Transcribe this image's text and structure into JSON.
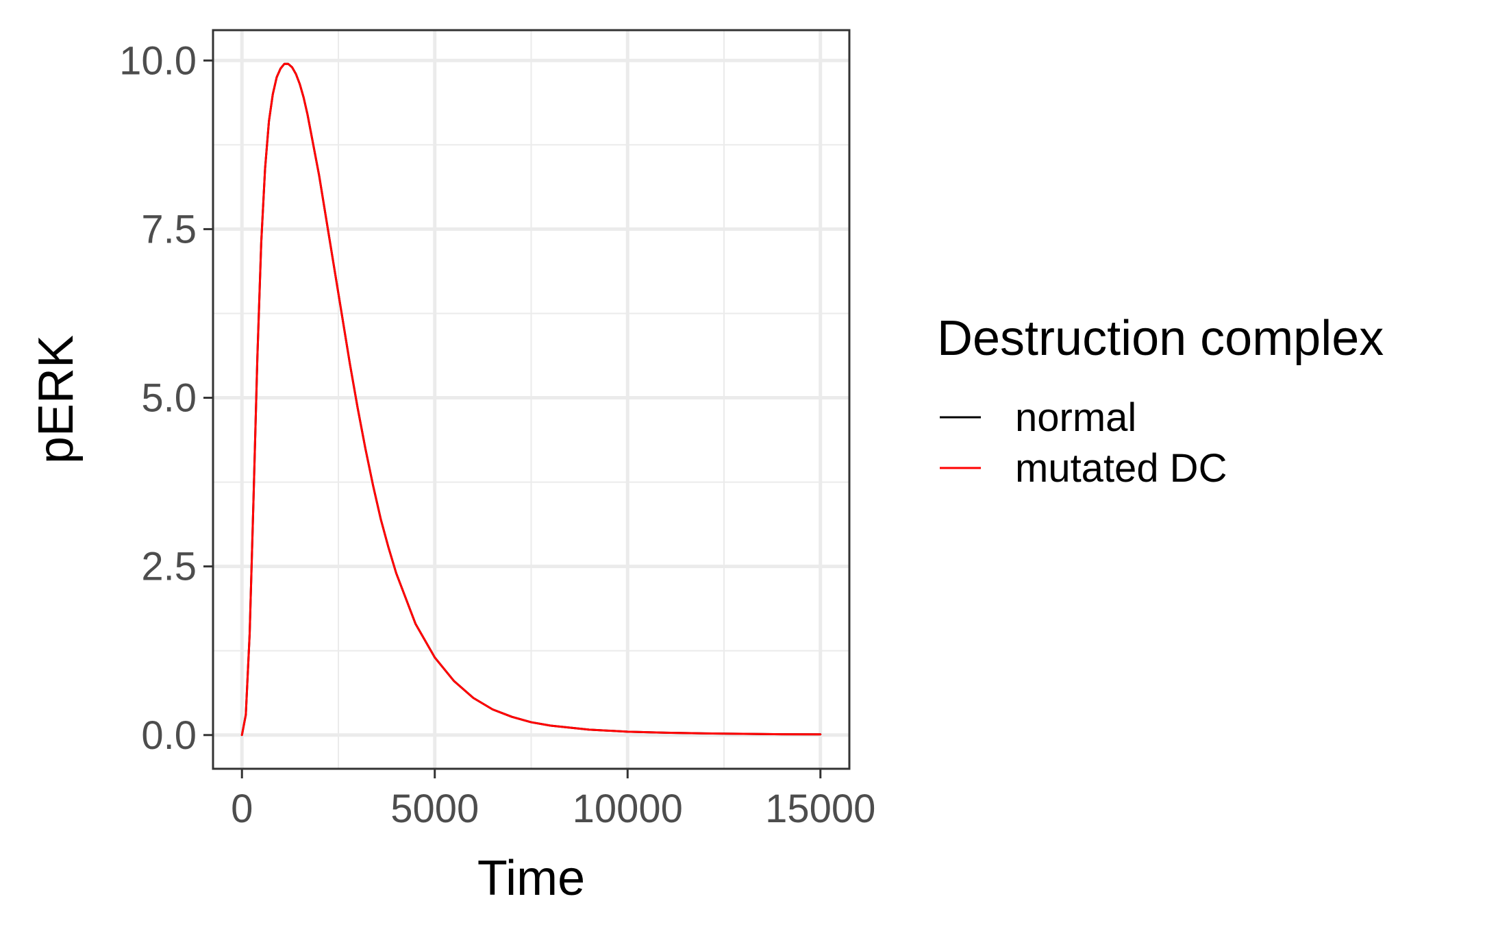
{
  "chart_data": {
    "type": "line",
    "title": "",
    "xlabel": "Time",
    "ylabel": "pERK",
    "xlim": [
      -750,
      15750
    ],
    "ylim": [
      -0.5,
      10.45
    ],
    "x_ticks": [
      0,
      5000,
      10000,
      15000
    ],
    "x_tick_labels": [
      "0",
      "5000",
      "10000",
      "15000"
    ],
    "y_ticks": [
      0,
      2.5,
      5,
      7.5,
      10
    ],
    "y_tick_labels": [
      "0.0",
      "2.5",
      "5.0",
      "7.5",
      "10.0"
    ],
    "grid": true,
    "legend": {
      "title": "Destruction complex",
      "position": "right",
      "entries": [
        {
          "label": "normal",
          "color": "#000000"
        },
        {
          "label": "mutated DC",
          "color": "#ff0000"
        }
      ]
    },
    "series": [
      {
        "name": "normal",
        "color": "#000000",
        "x": [
          0,
          100,
          200,
          300,
          400,
          500,
          600,
          700,
          800,
          900,
          1000,
          1100,
          1200,
          1300,
          1400,
          1500,
          1600,
          1700,
          1800,
          2000,
          2200,
          2400,
          2600,
          2800,
          3000,
          3200,
          3400,
          3600,
          3800,
          4000,
          4500,
          5000,
          5500,
          6000,
          6500,
          7000,
          7500,
          8000,
          9000,
          10000,
          11000,
          12000,
          13000,
          14000,
          15000
        ],
        "y": [
          0,
          0.3,
          1.5,
          3.5,
          5.6,
          7.3,
          8.4,
          9.1,
          9.5,
          9.75,
          9.88,
          9.95,
          9.95,
          9.9,
          9.8,
          9.65,
          9.45,
          9.2,
          8.9,
          8.3,
          7.6,
          6.9,
          6.2,
          5.5,
          4.85,
          4.25,
          3.7,
          3.2,
          2.78,
          2.4,
          1.65,
          1.15,
          0.8,
          0.55,
          0.38,
          0.27,
          0.19,
          0.14,
          0.08,
          0.05,
          0.035,
          0.025,
          0.018,
          0.012,
          0.01
        ]
      },
      {
        "name": "mutated DC",
        "color": "#ff0000",
        "x": [
          0,
          100,
          200,
          300,
          400,
          500,
          600,
          700,
          800,
          900,
          1000,
          1100,
          1200,
          1300,
          1400,
          1500,
          1600,
          1700,
          1800,
          2000,
          2200,
          2400,
          2600,
          2800,
          3000,
          3200,
          3400,
          3600,
          3800,
          4000,
          4500,
          5000,
          5500,
          6000,
          6500,
          7000,
          7500,
          8000,
          9000,
          10000,
          11000,
          12000,
          13000,
          14000,
          15000
        ],
        "y": [
          0,
          0.3,
          1.5,
          3.5,
          5.6,
          7.3,
          8.4,
          9.1,
          9.5,
          9.75,
          9.88,
          9.95,
          9.95,
          9.9,
          9.8,
          9.65,
          9.45,
          9.2,
          8.9,
          8.3,
          7.6,
          6.9,
          6.2,
          5.5,
          4.85,
          4.25,
          3.7,
          3.2,
          2.78,
          2.4,
          1.65,
          1.15,
          0.8,
          0.55,
          0.38,
          0.27,
          0.19,
          0.14,
          0.08,
          0.05,
          0.035,
          0.025,
          0.018,
          0.012,
          0.01
        ]
      }
    ]
  }
}
